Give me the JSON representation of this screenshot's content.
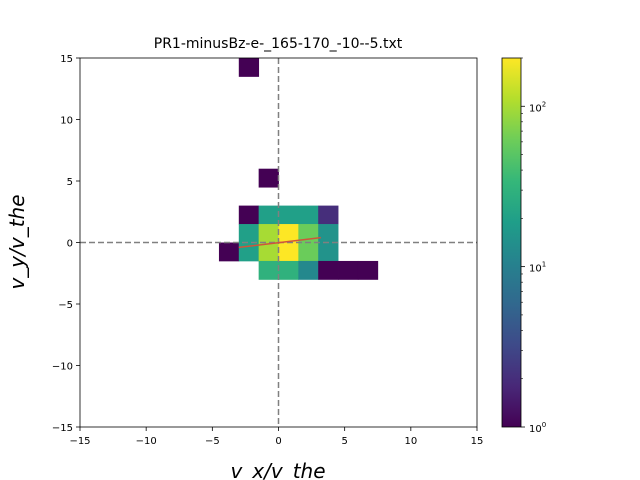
{
  "chart_data": {
    "type": "heatmap",
    "title": "PR1-minusBz-e-_165-170_-10--5.txt",
    "xlabel": "v_x/v_the",
    "ylabel": "v_y/v_the",
    "xlim": [
      -15,
      15
    ],
    "ylim": [
      -15,
      15
    ],
    "xticks": [
      "−15",
      "−10",
      "−5",
      "0",
      "5",
      "10",
      "15"
    ],
    "yticks": [
      "−15",
      "−10",
      "−5",
      "0",
      "5",
      "10",
      "15"
    ],
    "bin_width": 1.5,
    "color_scale": "log",
    "colormap": "viridis",
    "clim": [
      1,
      200
    ],
    "colorbar_ticks": [
      {
        "base": "10",
        "exp": "0",
        "value": 1
      },
      {
        "base": "10",
        "exp": "1",
        "value": 10
      },
      {
        "base": "10",
        "exp": "2",
        "value": 100
      }
    ],
    "cells": [
      {
        "x": -2.25,
        "y": 14.25,
        "count": 1
      },
      {
        "x": -0.75,
        "y": 5.25,
        "count": 1
      },
      {
        "x": -2.25,
        "y": 2.25,
        "count": 1
      },
      {
        "x": -0.75,
        "y": 2.25,
        "count": 20
      },
      {
        "x": 0.75,
        "y": 2.25,
        "count": 20
      },
      {
        "x": 2.25,
        "y": 2.25,
        "count": 20
      },
      {
        "x": 3.75,
        "y": 2.25,
        "count": 2
      },
      {
        "x": -2.25,
        "y": 0.75,
        "count": 20
      },
      {
        "x": -0.75,
        "y": 0.75,
        "count": 100
      },
      {
        "x": 0.75,
        "y": 0.75,
        "count": 200
      },
      {
        "x": 2.25,
        "y": 0.75,
        "count": 60
      },
      {
        "x": 3.75,
        "y": 0.75,
        "count": 15
      },
      {
        "x": -3.75,
        "y": -0.75,
        "count": 1
      },
      {
        "x": -2.25,
        "y": -0.75,
        "count": 20
      },
      {
        "x": -0.75,
        "y": -0.75,
        "count": 100
      },
      {
        "x": 0.75,
        "y": -0.75,
        "count": 200
      },
      {
        "x": 2.25,
        "y": -0.75,
        "count": 60
      },
      {
        "x": 3.75,
        "y": -0.75,
        "count": 15
      },
      {
        "x": -0.75,
        "y": -2.25,
        "count": 30
      },
      {
        "x": 0.75,
        "y": -2.25,
        "count": 30
      },
      {
        "x": 2.25,
        "y": -2.25,
        "count": 12
      },
      {
        "x": 3.75,
        "y": -2.25,
        "count": 1
      },
      {
        "x": 5.25,
        "y": -2.25,
        "count": 1
      },
      {
        "x": 6.75,
        "y": -2.25,
        "count": 1
      }
    ],
    "reference_lines": [
      {
        "orientation": "vertical",
        "value": 0,
        "style": "dashed",
        "color": "#808080"
      },
      {
        "orientation": "horizontal",
        "value": 0,
        "style": "dashed",
        "color": "#808080"
      }
    ],
    "fit_line": {
      "x": [
        -3.0,
        3.2
      ],
      "y": [
        -0.4,
        0.4
      ],
      "color": "#d0553a"
    }
  }
}
